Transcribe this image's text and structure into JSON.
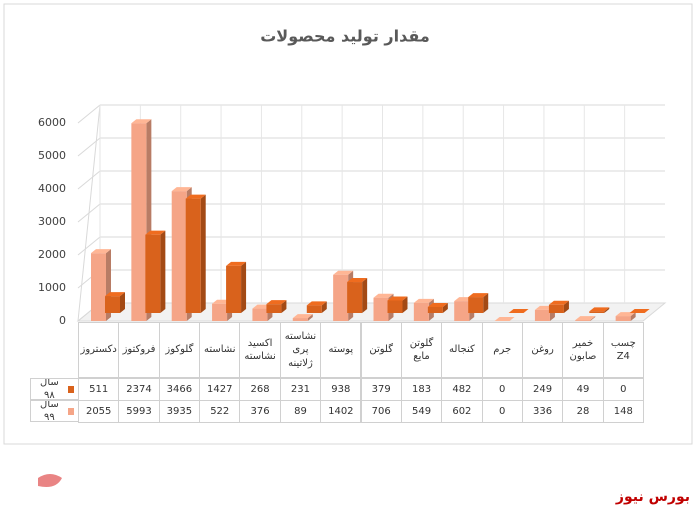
{
  "chart_data": {
    "type": "bar3d",
    "title": "مقدار تولید محصولات",
    "categories": [
      "دکستروز",
      "فروکتوز",
      "گلوکوز",
      "نشاسته",
      "اکسید نشاسته",
      "نشاسته پری ژلاتینه",
      "پوسته",
      "گلوتن",
      "گلوتن مایع",
      "کنجاله",
      "جرم",
      "روغن",
      "خمیر صابون",
      "چسب Z4"
    ],
    "series": [
      {
        "name": "سال ۹۸",
        "color": "#d9621c",
        "values": [
          511,
          2374,
          3466,
          1427,
          268,
          231,
          938,
          379,
          183,
          482,
          0,
          249,
          49,
          0
        ]
      },
      {
        "name": "سال ۹۹",
        "color": "#f5a587",
        "values": [
          2055,
          5993,
          3935,
          522,
          376,
          89,
          1402,
          706,
          549,
          602,
          0,
          336,
          28,
          148
        ]
      }
    ],
    "ylim": [
      0,
      6000
    ],
    "yticks": [
      0,
      1000,
      2000,
      3000,
      4000,
      5000,
      6000
    ],
    "grid": true,
    "source": "بورس نیوز"
  }
}
